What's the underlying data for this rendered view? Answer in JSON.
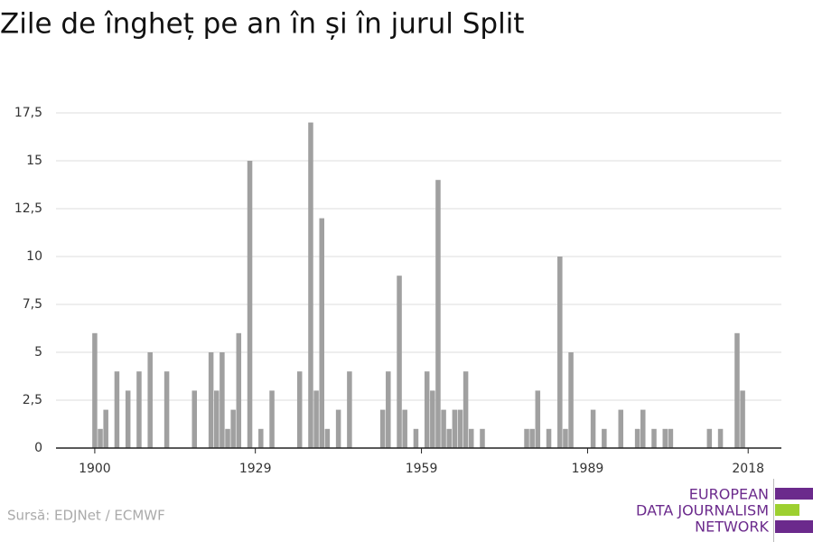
{
  "chart_data": {
    "type": "bar",
    "title": "Zile de îngheț pe an în și în jurul Split",
    "source": "Sursă: EDJNet / ECMWF",
    "logo": [
      "EUROPEAN",
      "DATA JOURNALISM",
      "NETWORK"
    ],
    "x": [
      1900,
      1901,
      1902,
      1904,
      1906,
      1908,
      1910,
      1913,
      1918,
      1921,
      1922,
      1923,
      1924,
      1925,
      1926,
      1928,
      1930,
      1932,
      1937,
      1939,
      1940,
      1941,
      1942,
      1944,
      1946,
      1952,
      1953,
      1955,
      1956,
      1958,
      1960,
      1961,
      1962,
      1963,
      1964,
      1965,
      1966,
      1967,
      1968,
      1970,
      1978,
      1979,
      1980,
      1982,
      1984,
      1985,
      1986,
      1990,
      1992,
      1995,
      1998,
      1999,
      2001,
      2003,
      2004,
      2011,
      2013,
      2016,
      2017
    ],
    "values": [
      6,
      1,
      2,
      4,
      3,
      4,
      5,
      4,
      3,
      5,
      3,
      5,
      1,
      2,
      6,
      15,
      1,
      3,
      4,
      17,
      3,
      12,
      1,
      2,
      4,
      2,
      4,
      9,
      2,
      1,
      4,
      3,
      14,
      2,
      1,
      2,
      2,
      4,
      1,
      1,
      1,
      1,
      3,
      1,
      10,
      1,
      5,
      2,
      1,
      2,
      1,
      2,
      1,
      1,
      1,
      1,
      1,
      6,
      3
    ],
    "color": "#a0a0a0",
    "xlim": [
      1893,
      2024
    ],
    "xticks": [
      1900,
      1929,
      1959,
      1989,
      2018
    ],
    "ylim": [
      0,
      17.5
    ],
    "yticks": [
      0,
      {
        "value": 2.5,
        "label": "2,5"
      },
      5,
      {
        "value": 7.5,
        "label": "7,5"
      },
      10,
      {
        "value": 12.5,
        "label": "12,5"
      },
      15,
      {
        "value": 17.5,
        "label": "17,5"
      }
    ],
    "grid": true
  }
}
